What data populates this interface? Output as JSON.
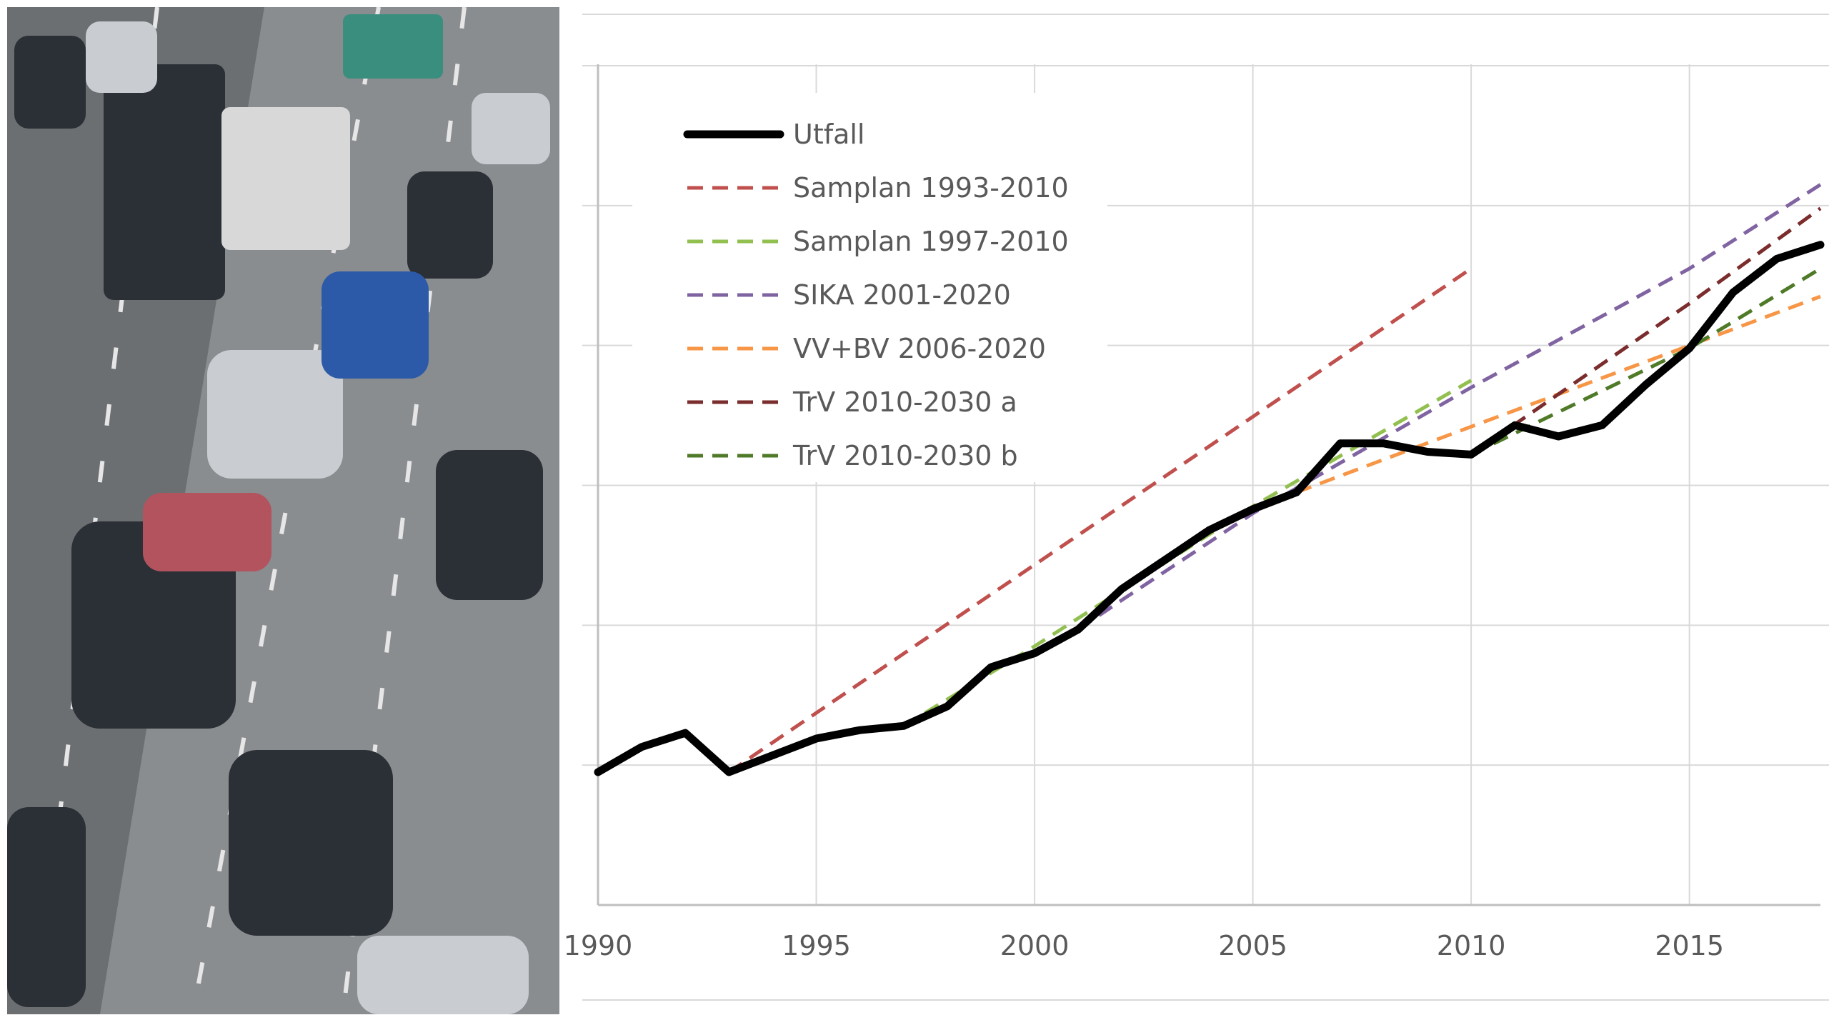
{
  "photo": {
    "description_icon": "highway-traffic-photo"
  },
  "chart_data": {
    "type": "line",
    "title": "",
    "xlabel": "",
    "ylabel": "",
    "xlim": [
      1990,
      2018
    ],
    "ylim": [
      0,
      6
    ],
    "x_ticks": [
      "1990",
      "1995",
      "2000",
      "2005",
      "2010",
      "2015"
    ],
    "grid": true,
    "legend_position": "top-left",
    "series": [
      {
        "name": "Utfall",
        "color": "#000000",
        "style": "solid",
        "points": [
          [
            1990,
            0.95
          ],
          [
            1991,
            1.13
          ],
          [
            1992,
            1.23
          ],
          [
            1993,
            0.95
          ],
          [
            1994,
            1.07
          ],
          [
            1995,
            1.19
          ],
          [
            1996,
            1.25
          ],
          [
            1997,
            1.28
          ],
          [
            1998,
            1.42
          ],
          [
            1999,
            1.7
          ],
          [
            2000,
            1.8
          ],
          [
            2001,
            1.97
          ],
          [
            2002,
            2.26
          ],
          [
            2003,
            2.47
          ],
          [
            2004,
            2.68
          ],
          [
            2005,
            2.83
          ],
          [
            2006,
            2.95
          ],
          [
            2007,
            3.3
          ],
          [
            2008,
            3.3
          ],
          [
            2009,
            3.24
          ],
          [
            2010,
            3.22
          ],
          [
            2011,
            3.43
          ],
          [
            2012,
            3.35
          ],
          [
            2013,
            3.43
          ],
          [
            2014,
            3.72
          ],
          [
            2015,
            3.98
          ],
          [
            2016,
            4.38
          ],
          [
            2017,
            4.62
          ],
          [
            2018,
            4.72
          ]
        ]
      },
      {
        "name": "Samplan 1993-2010",
        "color": "#C0504D",
        "style": "dashed",
        "points": [
          [
            1993,
            0.95
          ],
          [
            2010,
            4.55
          ]
        ]
      },
      {
        "name": "Samplan 1997-2010",
        "color": "#92C050",
        "style": "dashed",
        "points": [
          [
            1997,
            1.28
          ],
          [
            2000,
            1.85
          ],
          [
            2005,
            2.85
          ],
          [
            2010,
            3.75
          ]
        ]
      },
      {
        "name": "SIKA 2001-2020",
        "color": "#8064A2",
        "style": "dashed",
        "points": [
          [
            2001,
            1.97
          ],
          [
            2002,
            2.18
          ],
          [
            2005,
            2.8
          ],
          [
            2010,
            3.7
          ],
          [
            2015,
            4.55
          ],
          [
            2018,
            5.15
          ]
        ]
      },
      {
        "name": "VV+BV 2006-2020",
        "color": "#F79646",
        "style": "dashed",
        "points": [
          [
            2006,
            2.95
          ],
          [
            2010,
            3.42
          ],
          [
            2015,
            4.0
          ],
          [
            2018,
            4.35
          ]
        ]
      },
      {
        "name": "TrV 2010-2030 a",
        "color": "#7B2C2C",
        "style": "dashed",
        "points": [
          [
            2010,
            3.22
          ],
          [
            2015,
            4.3
          ],
          [
            2018,
            4.98
          ]
        ]
      },
      {
        "name": "TrV 2010-2030 b",
        "color": "#4F7A28",
        "style": "dashed",
        "points": [
          [
            2010,
            3.22
          ],
          [
            2015,
            3.98
          ],
          [
            2018,
            4.55
          ]
        ]
      }
    ]
  }
}
